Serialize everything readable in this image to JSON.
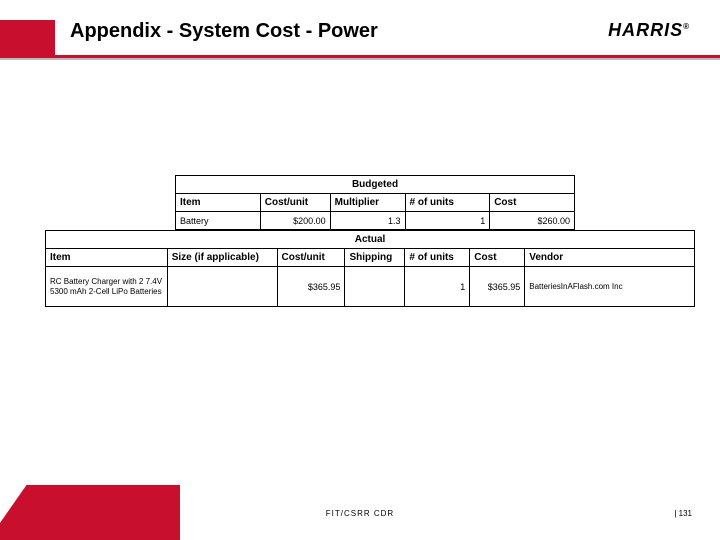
{
  "header": {
    "title": "Appendix - System Cost - Power",
    "logo_text": "HARRIS",
    "logo_reg": "®",
    "accent_color": "#c8102e"
  },
  "budgeted": {
    "section_title": "Budgeted",
    "columns": {
      "item": "Item",
      "cost_unit": "Cost/unit",
      "multiplier": "Multiplier",
      "units": "# of units",
      "cost": "Cost"
    },
    "row": {
      "item": "Battery",
      "cost_unit": "$200.00",
      "multiplier": "1.3",
      "units": "1",
      "cost": "$260.00"
    }
  },
  "actual": {
    "section_title": "Actual",
    "columns": {
      "item": "Item",
      "size": "Size (if applicable)",
      "cost_unit": "Cost/unit",
      "shipping": "Shipping",
      "units": "# of units",
      "cost": "Cost",
      "vendor": "Vendor"
    },
    "row": {
      "item": "RC Battery Charger with 2 7.4V 5300 mAh 2-Cell LiPo Batteries",
      "size": "",
      "cost_unit": "$365.95",
      "shipping": "",
      "units": "1",
      "cost": "$365.95",
      "vendor": "BatteriesInAFlash.com Inc"
    }
  },
  "footer": {
    "center": "FIT/CSRR CDR",
    "page": "131"
  }
}
